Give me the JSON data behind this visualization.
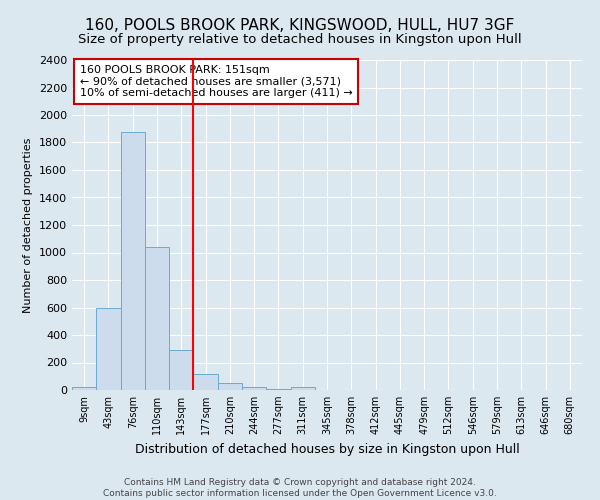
{
  "title": "160, POOLS BROOK PARK, KINGSWOOD, HULL, HU7 3GF",
  "subtitle": "Size of property relative to detached houses in Kingston upon Hull",
  "xlabel": "Distribution of detached houses by size in Kingston upon Hull",
  "ylabel": "Number of detached properties",
  "footer": "Contains HM Land Registry data © Crown copyright and database right 2024.\nContains public sector information licensed under the Open Government Licence v3.0.",
  "bins": [
    "9sqm",
    "43sqm",
    "76sqm",
    "110sqm",
    "143sqm",
    "177sqm",
    "210sqm",
    "244sqm",
    "277sqm",
    "311sqm",
    "345sqm",
    "378sqm",
    "412sqm",
    "445sqm",
    "479sqm",
    "512sqm",
    "546sqm",
    "579sqm",
    "613sqm",
    "646sqm",
    "680sqm"
  ],
  "values": [
    20,
    600,
    1880,
    1040,
    290,
    115,
    50,
    20,
    10,
    20,
    0,
    0,
    0,
    0,
    0,
    0,
    0,
    0,
    0,
    0,
    0
  ],
  "bar_color": "#ccdcec",
  "bar_edge_color": "#6aaad4",
  "red_line_x": 4.5,
  "annotation_text": "160 POOLS BROOK PARK: 151sqm\n← 90% of detached houses are smaller (3,571)\n10% of semi-detached houses are larger (411) →",
  "annotation_box_color": "#ffffff",
  "annotation_box_edge": "#cc0000",
  "ylim": [
    0,
    2400
  ],
  "yticks": [
    0,
    200,
    400,
    600,
    800,
    1000,
    1200,
    1400,
    1600,
    1800,
    2000,
    2200,
    2400
  ],
  "background_color": "#dce8f0",
  "plot_background": "#dce8f0",
  "grid_color": "#ffffff",
  "title_fontsize": 11,
  "subtitle_fontsize": 9.5,
  "footer_fontsize": 6.5
}
